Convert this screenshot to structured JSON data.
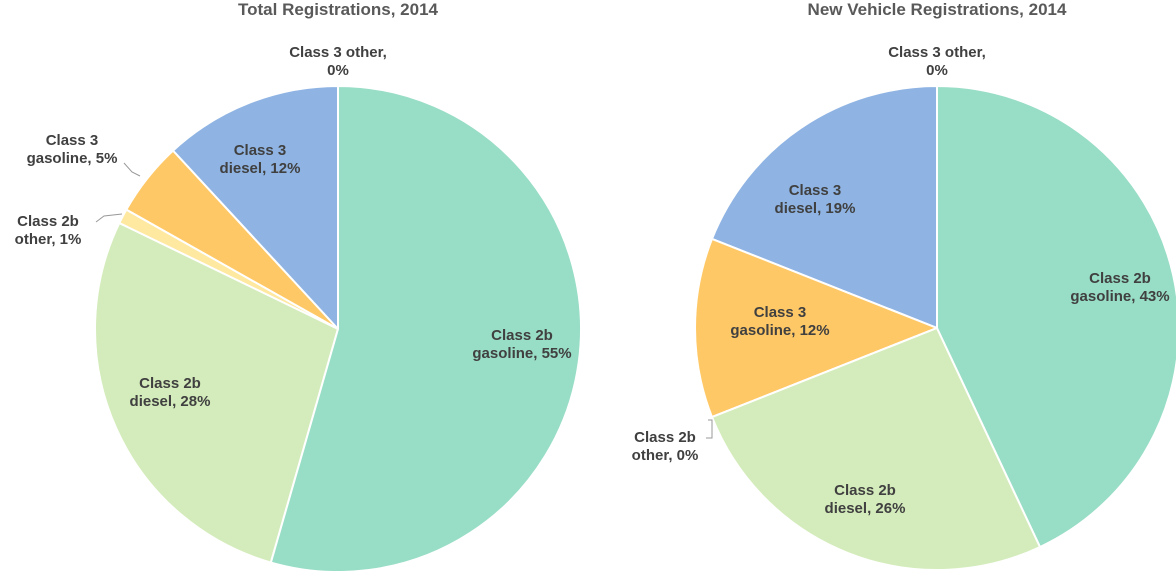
{
  "chart_data": [
    {
      "type": "pie",
      "title": "Total Registrations, 2014",
      "labels": [
        "Class 2b gasoline, 55%",
        "Class 2b diesel, 28%",
        "Class 2b other, 1%",
        "Class 3 gasoline, 5%",
        "Class 3 diesel, 12%",
        "Class 3 other, 0%"
      ],
      "values": [
        55,
        28,
        1,
        5,
        12,
        0
      ],
      "colors": [
        "#98ddc5",
        "#d4ecbb",
        "#ffe8a0",
        "#ffc866",
        "#8fb4e3",
        "#c9a0dc"
      ]
    },
    {
      "type": "pie",
      "title": "New Vehicle Registrations, 2014",
      "labels": [
        "Class 2b gasoline, 43%",
        "Class 2b diesel, 26%",
        "Class 2b other, 0%",
        "Class 3 gasoline, 12%",
        "Class 3 diesel, 19%",
        "Class 3 other, 0%"
      ],
      "values": [
        43,
        26,
        0,
        12,
        19,
        0
      ],
      "colors": [
        "#98ddc5",
        "#d4ecbb",
        "#ffe8a0",
        "#ffc866",
        "#8fb4e3",
        "#c9a0dc"
      ]
    }
  ]
}
